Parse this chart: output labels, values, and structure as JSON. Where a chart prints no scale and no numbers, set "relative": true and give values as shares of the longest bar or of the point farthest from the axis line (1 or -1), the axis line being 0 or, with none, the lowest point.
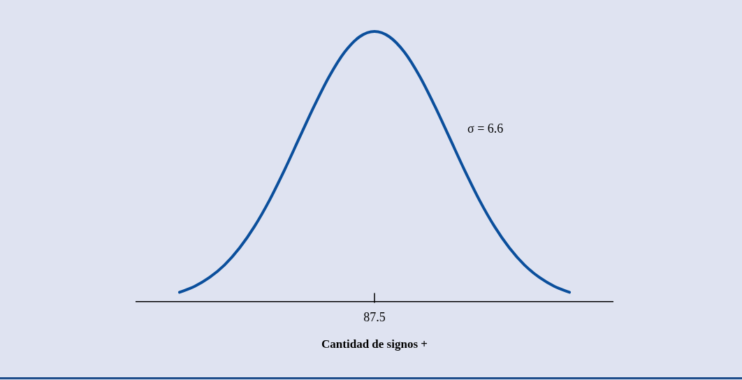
{
  "chart_data": {
    "type": "line",
    "relative": true,
    "xlabel": "Cantidad de signos +",
    "categories": [
      null,
      null,
      null,
      null,
      null,
      null,
      null,
      null,
      null,
      null,
      null,
      null,
      null,
      null,
      null,
      null,
      null,
      null,
      null,
      null,
      null,
      null,
      null,
      null,
      null,
      null,
      null
    ],
    "series": [
      {
        "color": "#0b4f9c",
        "values": [
          0.034,
          0.056,
          0.089,
          0.135,
          0.198,
          0.278,
          0.375,
          0.487,
          0.607,
          0.726,
          0.835,
          0.923,
          0.98,
          1,
          0.98,
          0.923,
          0.835,
          0.726,
          0.607,
          0.487,
          0.375,
          0.278,
          0.198,
          0.135,
          0.089,
          0.056,
          0.034
        ]
      }
    ],
    "annotations": [
      "σ = 6.6",
      "87.5"
    ],
    "legend": false,
    "marker": "none",
    "line_style": "solid"
  }
}
